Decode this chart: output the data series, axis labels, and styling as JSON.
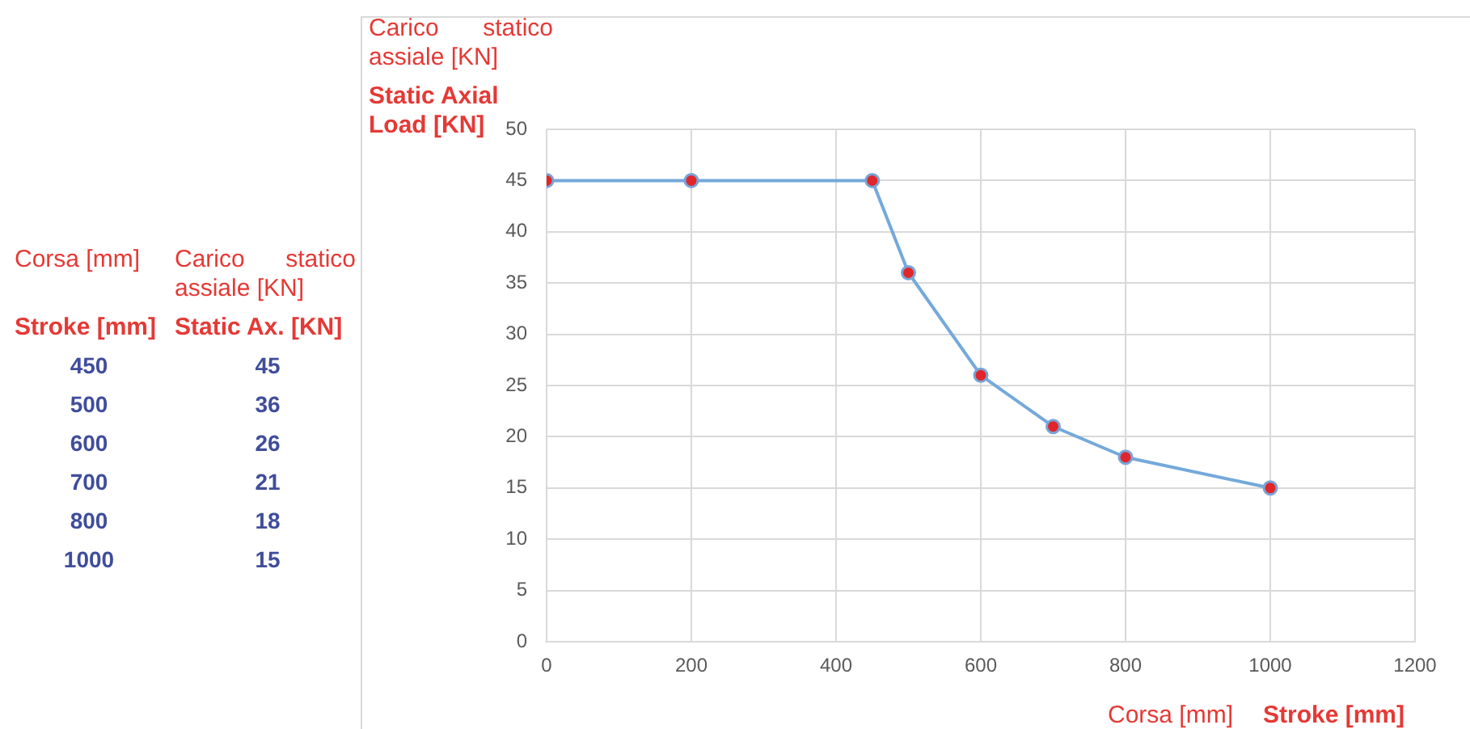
{
  "chart_data": {
    "type": "line",
    "ylabel": "Carico statico assiale [KN]",
    "xlabel": "Corsa [mm]",
    "annotations": [
      "Static Axial Load [KN]",
      "Stroke [mm]",
      "Corsa [mm]",
      "Carico statico assiale [KN]",
      "Stroke [mm]",
      "Static Ax. [KN]",
      "450",
      "45",
      "500",
      "36",
      "600",
      "26",
      "700",
      "21",
      "800",
      "18",
      "1000",
      "15"
    ],
    "series": [
      {
        "color": "#74a9da",
        "x": [
          0,
          200,
          450,
          500,
          600,
          700,
          800,
          1000
        ],
        "values": [
          45,
          45,
          45,
          36,
          26,
          21,
          18,
          15
        ]
      }
    ],
    "xlim": [
      0,
      1200
    ],
    "xticks": [
      0,
      200,
      400,
      600,
      800,
      1000,
      1200
    ],
    "ylim": [
      0,
      50
    ],
    "yticks": [
      0,
      5,
      10,
      15,
      20,
      25,
      30,
      35,
      40,
      45,
      50
    ],
    "grid": true,
    "legend": false,
    "marker": "circle",
    "line_style": "solid"
  }
}
